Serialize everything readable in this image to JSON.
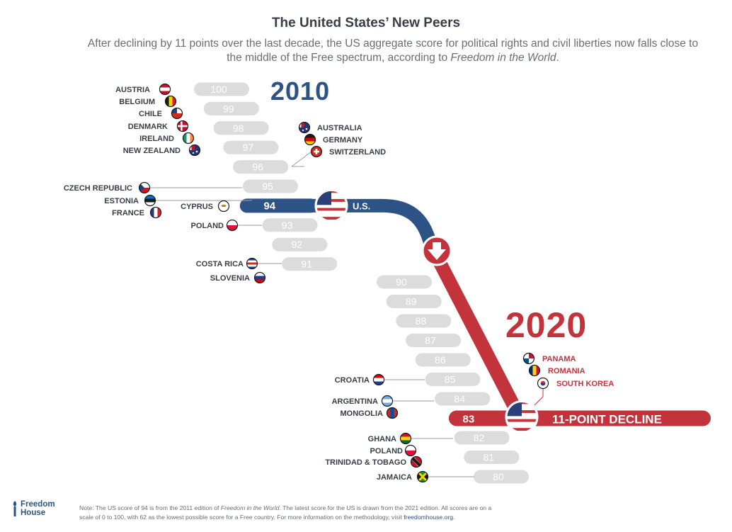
{
  "title": "The United States’ New Peers",
  "subtitle": {
    "text": "After declining by 11 points over the last decade, the US aggregate score for political rights and civil liberties now falls close to the middle of the Free spectrum, according to ",
    "italic": "Freedom in the World",
    "end": "."
  },
  "colors": {
    "blue": "#2d5386",
    "red": "#c2333b",
    "pill": "#dcdcdc",
    "text": "#3a3d48"
  },
  "chart_data": {
    "type": "bar",
    "years": [
      "2010",
      "2020"
    ],
    "us_label": "U.S.",
    "decline_label": "11-POINT DECLINE",
    "us_scores": {
      "2010": 94,
      "2020": 83
    },
    "scores_upper": [
      100,
      99,
      98,
      97,
      96,
      95,
      94,
      93,
      92,
      91
    ],
    "scores_lower": [
      90,
      89,
      88,
      87,
      86,
      85,
      84,
      83,
      82,
      81,
      80
    ],
    "peers_2010": [
      {
        "score": 100,
        "countries": [
          "AUSTRIA"
        ]
      },
      {
        "score": 99,
        "countries": [
          "BELGIUM"
        ]
      },
      {
        "score": 98,
        "countries": [
          "CHILE"
        ]
      },
      {
        "score": 97,
        "countries": [
          "DENMARK"
        ]
      },
      {
        "score": 96,
        "countries": [
          "IRELAND",
          "NEW ZEALAND",
          "AUSTRALIA",
          "GERMANY",
          "SWITZERLAND"
        ]
      },
      {
        "score": 95,
        "countries": [
          "CZECH REPUBLIC"
        ]
      },
      {
        "score": 94,
        "countries": [
          "ESTONIA",
          "FRANCE",
          "CYPRUS"
        ]
      },
      {
        "score": 93,
        "countries": [
          "POLAND"
        ]
      },
      {
        "score": 91,
        "countries": [
          "COSTA RICA",
          "SLOVENIA"
        ]
      }
    ],
    "peers_2020": [
      {
        "score": 85,
        "countries": [
          "CROATIA"
        ]
      },
      {
        "score": 84,
        "countries": [
          "ARGENTINA",
          "MONGOLIA"
        ]
      },
      {
        "score": 83,
        "countries": [
          "PANAMA",
          "ROMANIA",
          "SOUTH KOREA"
        ]
      },
      {
        "score": 82,
        "countries": [
          "GHANA",
          "POLAND"
        ]
      },
      {
        "score": 81,
        "countries": [
          "TRINIDAD & TOBAGO"
        ]
      },
      {
        "score": 80,
        "countries": [
          "JAMAICA"
        ]
      }
    ]
  },
  "labels_left": [
    {
      "name": "AUSTRIA",
      "flag": "austria-flag"
    },
    {
      "name": "BELGIUM",
      "flag": "belgium-flag"
    },
    {
      "name": "CHILE",
      "flag": "chile-flag"
    },
    {
      "name": "DENMARK",
      "flag": "denmark-flag"
    },
    {
      "name": "IRELAND",
      "flag": "ireland-flag"
    },
    {
      "name": "NEW ZEALAND",
      "flag": "new-zealand-flag"
    },
    {
      "name": "CZECH REPUBLIC",
      "flag": "czech-republic-flag"
    },
    {
      "name": "ESTONIA",
      "flag": "estonia-flag"
    },
    {
      "name": "FRANCE",
      "flag": "france-flag"
    },
    {
      "name": "CYPRUS",
      "flag": "cyprus-flag"
    },
    {
      "name": "POLAND",
      "flag": "poland-flag"
    },
    {
      "name": "COSTA RICA",
      "flag": "costa-rica-flag"
    },
    {
      "name": "SLOVENIA",
      "flag": "slovenia-flag"
    },
    {
      "name": "CROATIA",
      "flag": "croatia-flag"
    },
    {
      "name": "ARGENTINA",
      "flag": "argentina-flag"
    },
    {
      "name": "MONGOLIA",
      "flag": "mongolia-flag"
    },
    {
      "name": "GHANA",
      "flag": "ghana-flag"
    },
    {
      "name": "POLAND",
      "flag": "poland-flag"
    },
    {
      "name": "TRINIDAD & TOBAGO",
      "flag": "trinidad-tobago-flag"
    },
    {
      "name": "JAMAICA",
      "flag": "jamaica-flag"
    }
  ],
  "labels_right": [
    {
      "name": "AUSTRALIA",
      "flag": "australia-flag"
    },
    {
      "name": "GERMANY",
      "flag": "germany-flag"
    },
    {
      "name": "SWITZERLAND",
      "flag": "switzerland-flag"
    },
    {
      "name": "PANAMA",
      "flag": "panama-flag"
    },
    {
      "name": "ROMANIA",
      "flag": "romania-flag"
    },
    {
      "name": "SOUTH KOREA",
      "flag": "south-korea-flag"
    }
  ],
  "logo": {
    "line1": "Freedom",
    "line2": "House"
  },
  "note": {
    "p1": "Note: The US score of 94 is from the 2011 edition of ",
    "i1": "Freedom in the World",
    "p2": ". The latest score for the US is drawn from the 2021 edition. All scores are on a scale of 0 to 100, with 62 as the lowest possible score for a Free country. For more information on the methodology, visit ",
    "link": "freedomhouse.org",
    "p3": "."
  }
}
